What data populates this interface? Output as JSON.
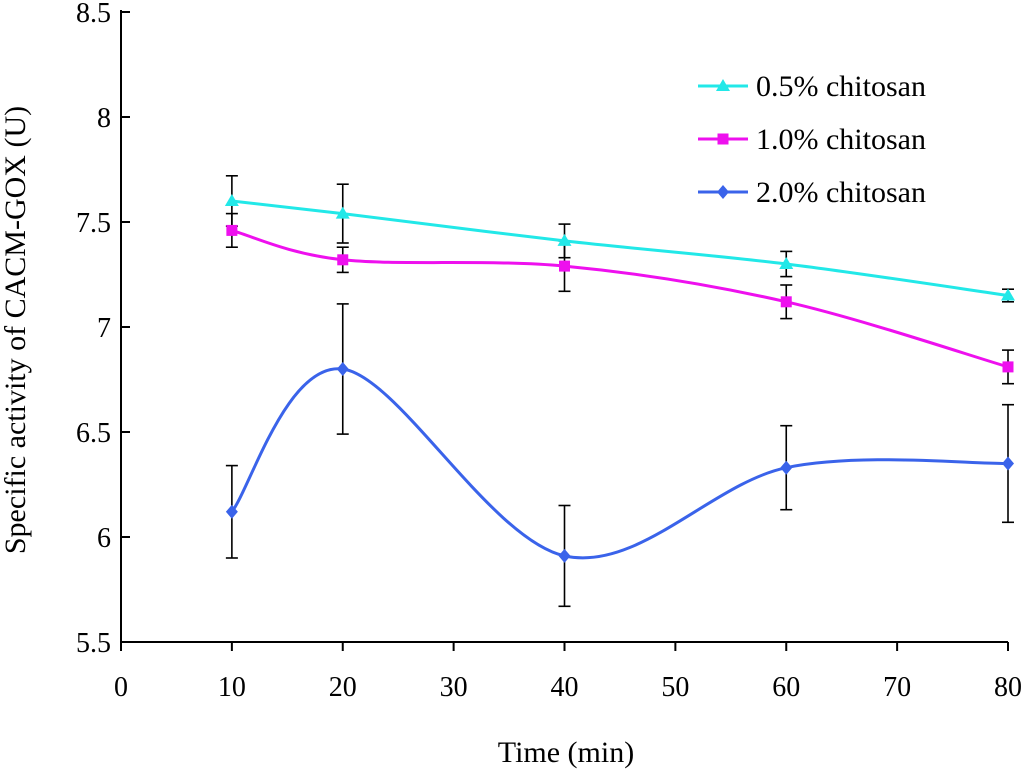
{
  "chart_data": {
    "type": "line",
    "title": "",
    "xlabel": "Time (min)",
    "ylabel": "Specific activity of CACM-GOX (U)",
    "xlim": [
      0,
      80
    ],
    "ylim": [
      5.5,
      8.5
    ],
    "xticks": [
      "0",
      "10",
      "20",
      "30",
      "40",
      "50",
      "60",
      "70",
      "80"
    ],
    "yticks": [
      "5.5",
      "6",
      "6.5",
      "7",
      "7.5",
      "8",
      "8.5"
    ],
    "grid": false,
    "legend_position": "top-right",
    "x": [
      10,
      20,
      40,
      60,
      80
    ],
    "series": [
      {
        "name": "0.5% chitosan",
        "color": "#22e8e8",
        "marker": "triangle",
        "values": [
          7.6,
          7.54,
          7.41,
          7.3,
          7.15
        ],
        "errors": [
          0.12,
          0.14,
          0.08,
          0.06,
          0.03
        ]
      },
      {
        "name": "1.0% chitosan",
        "color": "#ee10ee",
        "marker": "square",
        "values": [
          7.46,
          7.32,
          7.29,
          7.12,
          6.81
        ],
        "errors": [
          0.08,
          0.06,
          0.12,
          0.08,
          0.08
        ]
      },
      {
        "name": "2.0% chitosan",
        "color": "#3a63ea",
        "marker": "diamond",
        "values": [
          6.12,
          6.8,
          5.91,
          6.33,
          6.35
        ],
        "errors": [
          0.22,
          0.31,
          0.24,
          0.2,
          0.28
        ]
      }
    ]
  }
}
